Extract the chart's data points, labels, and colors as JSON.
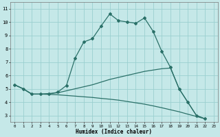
{
  "xlabel": "Humidex (Indice chaleur)",
  "bg_color": "#c5e8e8",
  "grid_color": "#9acfcf",
  "line_color": "#2a7068",
  "series1_x": [
    0,
    1,
    2,
    3,
    4,
    5,
    6,
    7,
    8,
    9,
    10,
    11,
    12,
    13,
    14,
    15,
    16,
    17,
    18,
    19,
    20,
    21,
    22
  ],
  "series1_y": [
    5.3,
    5.0,
    4.6,
    4.6,
    4.6,
    4.75,
    5.25,
    7.3,
    8.5,
    8.75,
    9.7,
    10.6,
    10.1,
    10.0,
    9.9,
    10.3,
    9.3,
    7.8,
    6.6,
    5.0,
    4.0,
    3.0,
    2.75
  ],
  "series2_x": [
    0,
    1,
    2,
    3,
    4,
    5,
    6,
    7,
    8,
    9,
    10,
    11,
    12,
    13,
    14,
    15,
    16,
    17,
    18,
    19,
    20,
    21,
    22
  ],
  "series2_y": [
    5.3,
    5.0,
    4.6,
    4.6,
    4.65,
    4.7,
    4.85,
    5.0,
    5.15,
    5.3,
    5.5,
    5.7,
    5.85,
    6.0,
    6.15,
    6.3,
    6.4,
    6.5,
    6.55,
    5.0,
    4.0,
    3.0,
    2.75
  ],
  "series3_x": [
    0,
    1,
    2,
    3,
    4,
    5,
    6,
    7,
    8,
    9,
    10,
    11,
    12,
    13,
    14,
    15,
    16,
    17,
    18,
    19,
    20,
    21,
    22
  ],
  "series3_y": [
    5.3,
    5.0,
    4.6,
    4.6,
    4.58,
    4.55,
    4.5,
    4.45,
    4.4,
    4.35,
    4.28,
    4.22,
    4.15,
    4.05,
    3.95,
    3.85,
    3.72,
    3.58,
    3.43,
    3.28,
    3.1,
    2.93,
    2.75
  ],
  "xlim": [
    -0.5,
    23.5
  ],
  "ylim": [
    2.5,
    11.5
  ],
  "yticks": [
    3,
    4,
    5,
    6,
    7,
    8,
    9,
    10,
    11
  ],
  "xticks": [
    0,
    1,
    2,
    3,
    4,
    5,
    6,
    7,
    8,
    9,
    10,
    11,
    12,
    13,
    14,
    15,
    16,
    17,
    18,
    19,
    20,
    21,
    22,
    23
  ]
}
